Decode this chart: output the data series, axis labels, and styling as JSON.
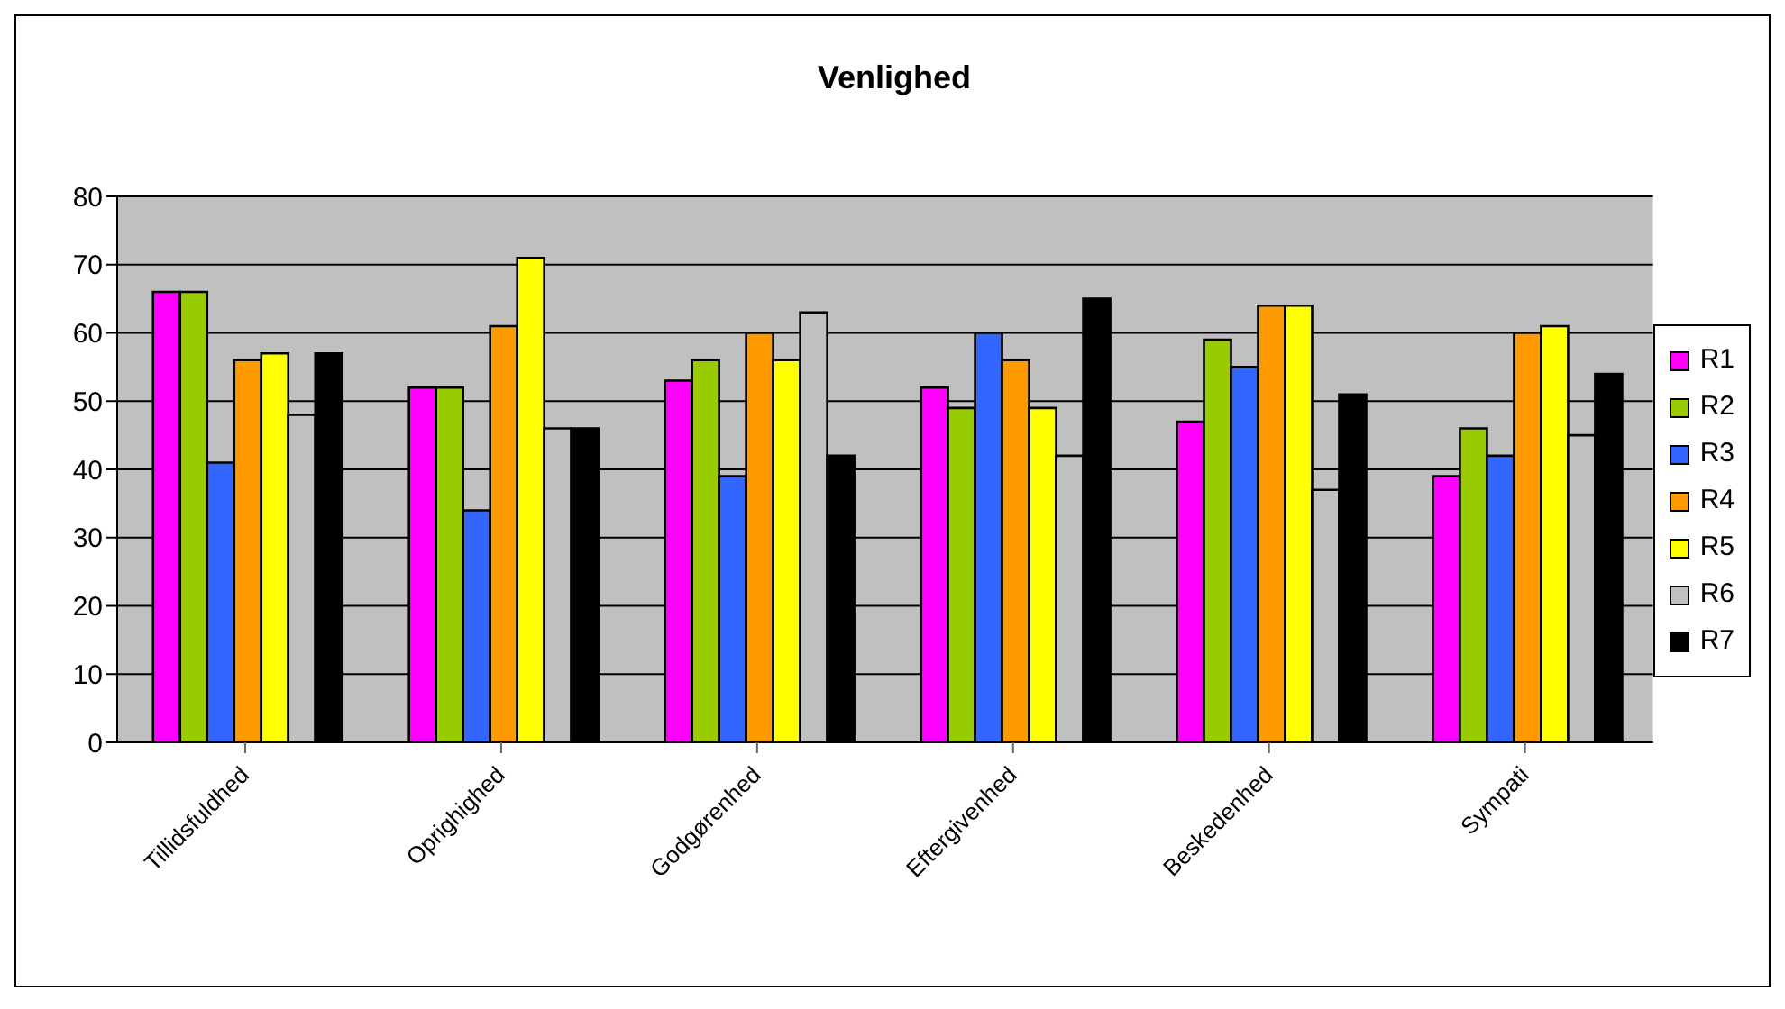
{
  "chart_data": {
    "type": "bar",
    "title": "Venlighed",
    "categories": [
      "Tillidsfuldhed",
      "Oprighighed",
      "Godgørenhed",
      "Eftergivenhed",
      "Beskedenhed",
      "Sympati"
    ],
    "series": [
      {
        "name": "R1",
        "color": "#ff00ff",
        "values": [
          66,
          52,
          53,
          52,
          47,
          39
        ]
      },
      {
        "name": "R2",
        "color": "#99cc00",
        "values": [
          66,
          52,
          56,
          49,
          59,
          46
        ]
      },
      {
        "name": "R3",
        "color": "#3366ff",
        "values": [
          41,
          34,
          39,
          60,
          55,
          42
        ]
      },
      {
        "name": "R4",
        "color": "#ff9900",
        "values": [
          56,
          61,
          60,
          56,
          64,
          60
        ]
      },
      {
        "name": "R5",
        "color": "#ffff00",
        "values": [
          57,
          71,
          56,
          49,
          64,
          61
        ]
      },
      {
        "name": "R6",
        "color": "#c0c0c0",
        "values": [
          48,
          46,
          63,
          42,
          37,
          45
        ]
      },
      {
        "name": "R7",
        "color": "#000000",
        "values": [
          57,
          46,
          42,
          65,
          51,
          54
        ]
      }
    ],
    "ylim": [
      0,
      80
    ],
    "yticks": [
      0,
      10,
      20,
      30,
      40,
      50,
      60,
      70,
      80
    ],
    "grid": "y",
    "legend": "right"
  }
}
